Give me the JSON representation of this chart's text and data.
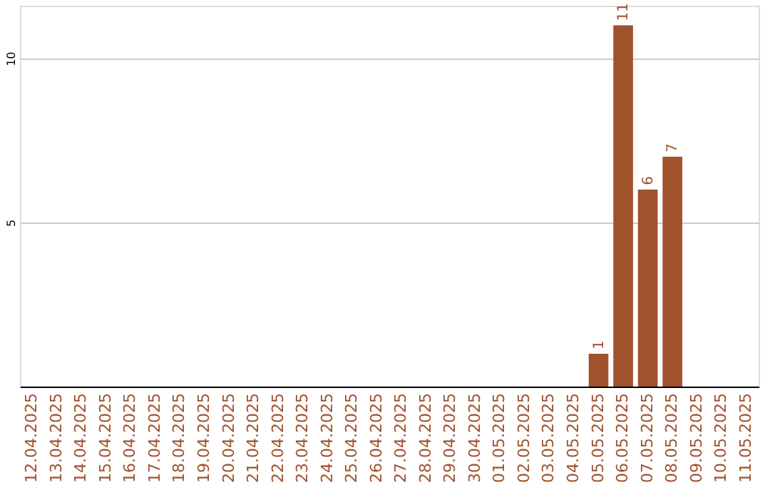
{
  "chart_data": {
    "type": "bar",
    "categories": [
      "12.04.2025",
      "13.04.2025",
      "14.04.2025",
      "15.04.2025",
      "16.04.2025",
      "17.04.2025",
      "18.04.2025",
      "19.04.2025",
      "20.04.2025",
      "21.04.2025",
      "22.04.2025",
      "23.04.2025",
      "24.04.2025",
      "25.04.2025",
      "26.04.2025",
      "27.04.2025",
      "28.04.2025",
      "29.04.2025",
      "30.04.2025",
      "01.05.2025",
      "02.05.2025",
      "03.05.2025",
      "04.05.2025",
      "05.05.2025",
      "06.05.2025",
      "07.05.2025",
      "08.05.2025",
      "09.05.2025",
      "10.05.2025",
      "11.05.2025"
    ],
    "values": [
      null,
      null,
      null,
      null,
      null,
      null,
      null,
      null,
      null,
      null,
      null,
      null,
      null,
      null,
      null,
      null,
      null,
      null,
      null,
      null,
      null,
      null,
      null,
      1,
      11,
      6,
      7,
      null,
      null,
      null
    ],
    "color": "#a0522d",
    "ylim": [
      0,
      11.6
    ],
    "yticks": [
      5,
      10
    ],
    "grid": "y",
    "data_labels": true
  }
}
